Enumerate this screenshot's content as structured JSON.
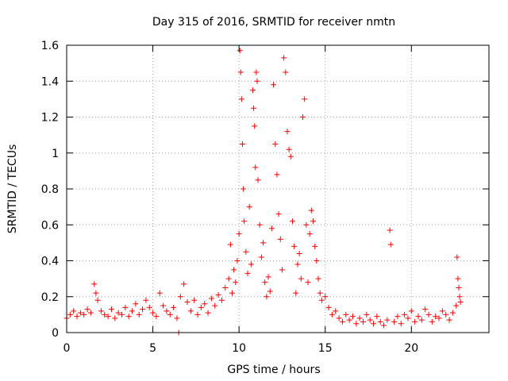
{
  "chart_data": {
    "type": "scatter",
    "title": "Day 315 of 2016, SRMTID for receiver nmtn",
    "xlabel": "GPS time / hours",
    "ylabel": "SRMTID / TECUs",
    "xlim": [
      0,
      24.5
    ],
    "ylim": [
      0,
      1.6
    ],
    "xticks": [
      0,
      5,
      10,
      15,
      20
    ],
    "xtick_labels": [
      "0",
      "5",
      "10",
      "15",
      "20"
    ],
    "yticks": [
      0,
      0.2,
      0.4,
      0.6,
      0.8,
      1,
      1.2,
      1.4,
      1.6
    ],
    "ytick_labels": [
      "0",
      "0.2",
      "0.4",
      "0.6",
      "0.8",
      "1",
      "1.2",
      "1.4",
      "1.6"
    ],
    "grid": true,
    "marker": "+",
    "color": "#ff0000",
    "series": [
      {
        "name": "SRMTID",
        "points": [
          [
            0.0,
            0.08
          ],
          [
            0.2,
            0.1
          ],
          [
            0.4,
            0.12
          ],
          [
            0.6,
            0.09
          ],
          [
            0.8,
            0.11
          ],
          [
            1.0,
            0.1
          ],
          [
            1.2,
            0.13
          ],
          [
            1.4,
            0.11
          ],
          [
            1.6,
            0.27
          ],
          [
            1.7,
            0.22
          ],
          [
            1.8,
            0.18
          ],
          [
            2.0,
            0.12
          ],
          [
            2.2,
            0.1
          ],
          [
            2.4,
            0.09
          ],
          [
            2.6,
            0.13
          ],
          [
            2.8,
            0.08
          ],
          [
            3.0,
            0.11
          ],
          [
            3.2,
            0.1
          ],
          [
            3.4,
            0.14
          ],
          [
            3.6,
            0.09
          ],
          [
            3.8,
            0.12
          ],
          [
            4.0,
            0.16
          ],
          [
            4.2,
            0.1
          ],
          [
            4.4,
            0.13
          ],
          [
            4.6,
            0.18
          ],
          [
            4.8,
            0.14
          ],
          [
            5.0,
            0.11
          ],
          [
            5.2,
            0.09
          ],
          [
            5.4,
            0.22
          ],
          [
            5.6,
            0.15
          ],
          [
            5.8,
            0.12
          ],
          [
            6.0,
            0.1
          ],
          [
            6.2,
            0.14
          ],
          [
            6.4,
            0.08
          ],
          [
            6.5,
            0.0
          ],
          [
            6.6,
            0.2
          ],
          [
            6.8,
            0.27
          ],
          [
            7.0,
            0.17
          ],
          [
            7.2,
            0.12
          ],
          [
            7.4,
            0.18
          ],
          [
            7.6,
            0.1
          ],
          [
            7.8,
            0.14
          ],
          [
            8.0,
            0.16
          ],
          [
            8.2,
            0.11
          ],
          [
            8.4,
            0.19
          ],
          [
            8.6,
            0.15
          ],
          [
            8.8,
            0.21
          ],
          [
            9.0,
            0.18
          ],
          [
            9.2,
            0.25
          ],
          [
            9.4,
            0.3
          ],
          [
            9.5,
            0.49
          ],
          [
            9.6,
            0.22
          ],
          [
            9.7,
            0.35
          ],
          [
            9.8,
            0.28
          ],
          [
            9.9,
            0.4
          ],
          [
            10.0,
            0.55
          ],
          [
            10.05,
            1.57
          ],
          [
            10.1,
            1.45
          ],
          [
            10.15,
            1.3
          ],
          [
            10.2,
            1.05
          ],
          [
            10.25,
            0.8
          ],
          [
            10.3,
            0.62
          ],
          [
            10.4,
            0.45
          ],
          [
            10.5,
            0.33
          ],
          [
            10.6,
            0.7
          ],
          [
            10.7,
            0.38
          ],
          [
            10.8,
            1.35
          ],
          [
            10.85,
            1.25
          ],
          [
            10.9,
            1.15
          ],
          [
            10.95,
            0.92
          ],
          [
            11.0,
            1.45
          ],
          [
            11.05,
            1.4
          ],
          [
            11.1,
            0.85
          ],
          [
            11.2,
            0.6
          ],
          [
            11.3,
            0.42
          ],
          [
            11.4,
            0.5
          ],
          [
            11.5,
            0.28
          ],
          [
            11.6,
            0.2
          ],
          [
            11.7,
            0.31
          ],
          [
            11.8,
            0.23
          ],
          [
            11.9,
            0.58
          ],
          [
            12.0,
            1.38
          ],
          [
            12.1,
            1.05
          ],
          [
            12.2,
            0.88
          ],
          [
            12.3,
            0.66
          ],
          [
            12.4,
            0.52
          ],
          [
            12.5,
            0.35
          ],
          [
            12.6,
            1.53
          ],
          [
            12.7,
            1.45
          ],
          [
            12.8,
            1.12
          ],
          [
            12.9,
            1.02
          ],
          [
            13.0,
            0.98
          ],
          [
            13.1,
            0.62
          ],
          [
            13.2,
            0.48
          ],
          [
            13.3,
            0.22
          ],
          [
            13.4,
            0.38
          ],
          [
            13.5,
            0.44
          ],
          [
            13.6,
            0.3
          ],
          [
            13.7,
            1.2
          ],
          [
            13.8,
            1.3
          ],
          [
            13.9,
            0.6
          ],
          [
            14.0,
            0.28
          ],
          [
            14.1,
            0.55
          ],
          [
            14.2,
            0.68
          ],
          [
            14.3,
            0.62
          ],
          [
            14.4,
            0.48
          ],
          [
            14.5,
            0.4
          ],
          [
            14.6,
            0.3
          ],
          [
            14.7,
            0.22
          ],
          [
            14.8,
            0.18
          ],
          [
            15.0,
            0.2
          ],
          [
            15.2,
            0.14
          ],
          [
            15.4,
            0.1
          ],
          [
            15.6,
            0.12
          ],
          [
            15.8,
            0.08
          ],
          [
            16.0,
            0.06
          ],
          [
            16.2,
            0.1
          ],
          [
            16.4,
            0.07
          ],
          [
            16.6,
            0.09
          ],
          [
            16.8,
            0.05
          ],
          [
            17.0,
            0.08
          ],
          [
            17.2,
            0.06
          ],
          [
            17.4,
            0.1
          ],
          [
            17.6,
            0.07
          ],
          [
            17.8,
            0.05
          ],
          [
            18.0,
            0.09
          ],
          [
            18.2,
            0.06
          ],
          [
            18.4,
            0.04
          ],
          [
            18.6,
            0.07
          ],
          [
            18.75,
            0.57
          ],
          [
            18.8,
            0.49
          ],
          [
            19.0,
            0.06
          ],
          [
            19.2,
            0.09
          ],
          [
            19.4,
            0.05
          ],
          [
            19.6,
            0.1
          ],
          [
            19.8,
            0.08
          ],
          [
            20.0,
            0.12
          ],
          [
            20.2,
            0.06
          ],
          [
            20.4,
            0.09
          ],
          [
            20.6,
            0.07
          ],
          [
            20.8,
            0.13
          ],
          [
            21.0,
            0.1
          ],
          [
            21.2,
            0.06
          ],
          [
            21.4,
            0.09
          ],
          [
            21.6,
            0.08
          ],
          [
            21.8,
            0.12
          ],
          [
            22.0,
            0.1
          ],
          [
            22.2,
            0.07
          ],
          [
            22.4,
            0.11
          ],
          [
            22.6,
            0.15
          ],
          [
            22.65,
            0.42
          ],
          [
            22.7,
            0.3
          ],
          [
            22.75,
            0.25
          ],
          [
            22.8,
            0.2
          ],
          [
            22.85,
            0.17
          ]
        ]
      }
    ]
  }
}
